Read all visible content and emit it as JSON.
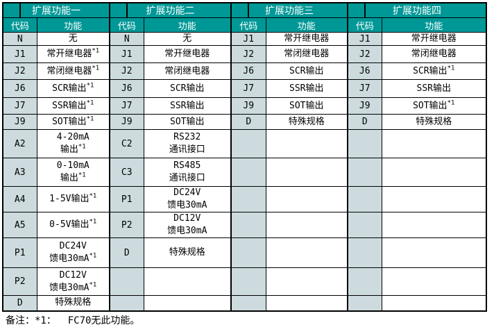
{
  "colors": {
    "header_bg": "#009897",
    "header_text": "#FFFFFF",
    "code_bg": "#CDDBDE",
    "border": "#000000",
    "body_text": "#000000"
  },
  "note": "备注：*1：  FC70无此功能。",
  "table": {
    "sections": [
      {
        "title": "扩展功能一",
        "col_headers": [
          "代码",
          "功能"
        ],
        "rows": [
          {
            "code": "N",
            "func_lines": [
              "无"
            ],
            "sup": ""
          },
          {
            "code": "J1",
            "func_lines": [
              "常开继电器"
            ],
            "sup": "*1"
          },
          {
            "code": "J2",
            "func_lines": [
              "常闭继电器"
            ],
            "sup": "*1"
          },
          {
            "code": "J6",
            "func_lines": [
              "SCR输出"
            ],
            "sup": "*1"
          },
          {
            "code": "J7",
            "func_lines": [
              "SSR输出"
            ],
            "sup": "*1"
          },
          {
            "code": "J9",
            "func_lines": [
              "SOT输出"
            ],
            "sup": "*1"
          },
          {
            "code": "A2",
            "func_lines": [
              "4-20mA",
              "输出"
            ],
            "sup": "*1"
          },
          {
            "code": "A3",
            "func_lines": [
              "0-10mA",
              "输出"
            ],
            "sup": "*1"
          },
          {
            "code": "A4",
            "func_lines": [
              "1-5V输出"
            ],
            "sup": "*1"
          },
          {
            "code": "A5",
            "func_lines": [
              "0-5V输出"
            ],
            "sup": "*1"
          },
          {
            "code": "P1",
            "func_lines": [
              "DC24V",
              "馈电30mA"
            ],
            "sup": "*1"
          },
          {
            "code": "P2",
            "func_lines": [
              "DC12V",
              "馈电30mA"
            ],
            "sup": "*1"
          },
          {
            "code": "D",
            "func_lines": [
              "特殊规格"
            ],
            "sup": ""
          }
        ]
      },
      {
        "title": "扩展功能二",
        "col_headers": [
          "代码",
          "功能"
        ],
        "rows": [
          {
            "code": "N",
            "func_lines": [
              "无"
            ],
            "sup": ""
          },
          {
            "code": "J1",
            "func_lines": [
              "常开继电器"
            ],
            "sup": ""
          },
          {
            "code": "J2",
            "func_lines": [
              "常闭继电器"
            ],
            "sup": ""
          },
          {
            "code": "J6",
            "func_lines": [
              "SCR输出"
            ],
            "sup": ""
          },
          {
            "code": "J7",
            "func_lines": [
              "SSR输出"
            ],
            "sup": ""
          },
          {
            "code": "J9",
            "func_lines": [
              "SOT输出"
            ],
            "sup": ""
          },
          {
            "code": "C2",
            "func_lines": [
              "RS232",
              "通讯接口"
            ],
            "sup": ""
          },
          {
            "code": "C3",
            "func_lines": [
              "RS485",
              "通讯接口"
            ],
            "sup": ""
          },
          {
            "code": "P1",
            "func_lines": [
              "DC24V",
              "馈电30mA"
            ],
            "sup": ""
          },
          {
            "code": "P2",
            "func_lines": [
              "DC12V",
              "馈电30mA"
            ],
            "sup": ""
          },
          {
            "code": "D",
            "func_lines": [
              "特殊规格"
            ],
            "sup": ""
          },
          {
            "code": "",
            "func_lines": [],
            "sup": ""
          },
          {
            "code": "",
            "func_lines": [],
            "sup": ""
          }
        ]
      },
      {
        "title": "扩展功能三",
        "col_headers": [
          "代码",
          "功能"
        ],
        "rows": [
          {
            "code": "J1",
            "func_lines": [
              "常开继电器"
            ],
            "sup": ""
          },
          {
            "code": "J2",
            "func_lines": [
              "常闭继电器"
            ],
            "sup": ""
          },
          {
            "code": "J6",
            "func_lines": [
              "SCR输出"
            ],
            "sup": ""
          },
          {
            "code": "J7",
            "func_lines": [
              "SSR输出"
            ],
            "sup": ""
          },
          {
            "code": "J9",
            "func_lines": [
              "SOT输出"
            ],
            "sup": ""
          },
          {
            "code": "D",
            "func_lines": [
              "特殊规格"
            ],
            "sup": ""
          },
          {
            "code": "",
            "func_lines": [],
            "sup": ""
          },
          {
            "code": "",
            "func_lines": [],
            "sup": ""
          },
          {
            "code": "",
            "func_lines": [],
            "sup": ""
          },
          {
            "code": "",
            "func_lines": [],
            "sup": ""
          },
          {
            "code": "",
            "func_lines": [],
            "sup": ""
          },
          {
            "code": "",
            "func_lines": [],
            "sup": ""
          },
          {
            "code": "",
            "func_lines": [],
            "sup": ""
          }
        ]
      },
      {
        "title": "扩展功能四",
        "col_headers": [
          "代码",
          "功能"
        ],
        "rows": [
          {
            "code": "J1",
            "func_lines": [
              "常开继电器"
            ],
            "sup": ""
          },
          {
            "code": "J2",
            "func_lines": [
              "常闭继电器"
            ],
            "sup": ""
          },
          {
            "code": "J6",
            "func_lines": [
              "SCR输出"
            ],
            "sup": "*1"
          },
          {
            "code": "J7",
            "func_lines": [
              "SSR输出"
            ],
            "sup": ""
          },
          {
            "code": "J9",
            "func_lines": [
              "SOT输出"
            ],
            "sup": "*1"
          },
          {
            "code": "D",
            "func_lines": [
              "特殊规格"
            ],
            "sup": ""
          },
          {
            "code": "",
            "func_lines": [],
            "sup": ""
          },
          {
            "code": "",
            "func_lines": [],
            "sup": ""
          },
          {
            "code": "",
            "func_lines": [],
            "sup": ""
          },
          {
            "code": "",
            "func_lines": [],
            "sup": ""
          },
          {
            "code": "",
            "func_lines": [],
            "sup": ""
          },
          {
            "code": "",
            "func_lines": [],
            "sup": ""
          },
          {
            "code": "",
            "func_lines": [],
            "sup": ""
          }
        ]
      }
    ]
  }
}
